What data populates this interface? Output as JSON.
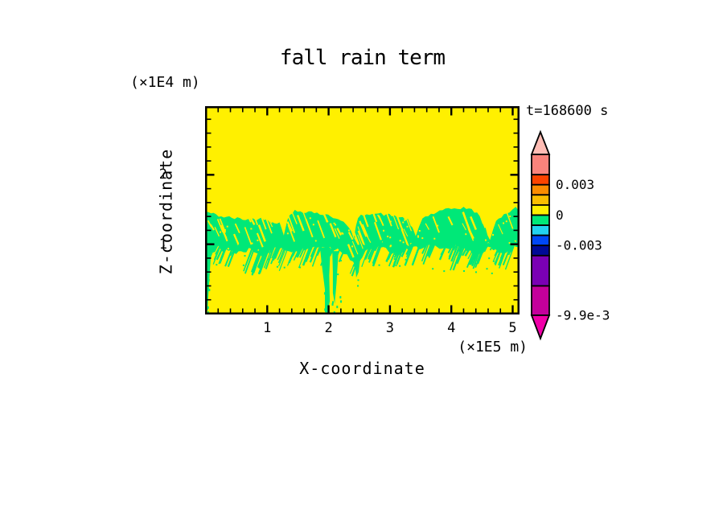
{
  "title": "fall rain term",
  "time_label": "t=168600 s",
  "axes": {
    "x_label": "X-coordinate",
    "x_unit": "(×1E5 m)",
    "y_label": "Z-coordinate",
    "y_unit": "(×1E4 m)"
  },
  "colors": {
    "page_background": "#ffffff",
    "frame": "#000000",
    "text": "#000000",
    "field_background": "#FFF000",
    "field_band": "#00E878"
  },
  "chart_data": {
    "type": "heatmap",
    "title": "fall rain term",
    "time_label": "t=168600 s",
    "xlabel": "X-coordinate",
    "x_unit": "(×1E5 m)",
    "ylabel": "Z-coordinate",
    "y_unit": "(×1E4 m)",
    "xlim": [
      0,
      5.12
    ],
    "ylim": [
      0,
      3.0
    ],
    "x_major_ticks": [
      1,
      2,
      3,
      4,
      5
    ],
    "x_minor_tick_step": 0.2,
    "y_major_ticks": [
      1,
      2
    ],
    "y_minor_tick_step": 0.2,
    "grid": false,
    "field": {
      "background_cell": {
        "range": [
          0,
          0.001
        ],
        "color": "#FFF000",
        "note": "near-zero values over most of the domain"
      },
      "band_cell": {
        "range": [
          -0.001,
          0
        ],
        "color": "#00E878",
        "note": "ragged precipitation band around z = 0.8-1.5 (x1E4 m)"
      },
      "band_top_edge": [
        [
          0,
          1.47
        ],
        [
          0.25,
          1.4
        ],
        [
          0.6,
          1.36
        ],
        [
          0.95,
          1.37
        ],
        [
          1.2,
          1.3
        ],
        [
          1.27,
          1.15
        ],
        [
          1.33,
          1.37
        ],
        [
          1.45,
          1.48
        ],
        [
          1.72,
          1.47
        ],
        [
          1.95,
          1.42
        ],
        [
          2.2,
          1.36
        ],
        [
          2.33,
          1.23
        ],
        [
          2.41,
          1.1
        ],
        [
          2.48,
          1.38
        ],
        [
          2.62,
          1.45
        ],
        [
          2.9,
          1.43
        ],
        [
          3.12,
          1.4
        ],
        [
          3.3,
          1.35
        ],
        [
          3.42,
          1.12
        ],
        [
          3.53,
          1.38
        ],
        [
          3.76,
          1.46
        ],
        [
          4.0,
          1.51
        ],
        [
          4.2,
          1.53
        ],
        [
          4.42,
          1.46
        ],
        [
          4.55,
          1.24
        ],
        [
          4.63,
          1.05
        ],
        [
          4.73,
          1.35
        ],
        [
          4.9,
          1.45
        ],
        [
          5.05,
          1.52
        ],
        [
          5.12,
          1.49
        ]
      ],
      "band_bottom_edge": [
        [
          0,
          0.82
        ],
        [
          0.2,
          0.95
        ],
        [
          0.45,
          0.87
        ],
        [
          0.7,
          0.93
        ],
        [
          0.95,
          0.85
        ],
        [
          1.15,
          0.97
        ],
        [
          1.4,
          0.89
        ],
        [
          1.65,
          0.93
        ],
        [
          1.85,
          0.98
        ],
        [
          2.1,
          0.94
        ],
        [
          2.3,
          0.87
        ],
        [
          2.45,
          0.68
        ],
        [
          2.6,
          0.89
        ],
        [
          2.85,
          0.95
        ],
        [
          3.1,
          0.85
        ],
        [
          3.35,
          0.93
        ],
        [
          3.6,
          0.99
        ],
        [
          3.85,
          0.91
        ],
        [
          4.1,
          0.97
        ],
        [
          4.35,
          0.87
        ],
        [
          4.6,
          0.93
        ],
        [
          4.85,
          0.89
        ],
        [
          5.0,
          0.97
        ],
        [
          5.12,
          0.93
        ]
      ],
      "streaks": [
        {
          "points": [
            [
              1.86,
              0.95
            ],
            [
              2.03,
              0.95
            ],
            [
              2.01,
              0.55
            ],
            [
              2.02,
              0.18
            ],
            [
              1.98,
              0.02
            ],
            [
              1.94,
              0.02
            ],
            [
              1.94,
              0.35
            ],
            [
              1.89,
              0.7
            ]
          ]
        },
        {
          "points": [
            [
              2.06,
              0.9
            ],
            [
              2.16,
              0.9
            ],
            [
              2.13,
              0.45
            ],
            [
              2.1,
              0.14
            ],
            [
              2.07,
              0.3
            ],
            [
              2.07,
              0.6
            ]
          ]
        },
        {
          "points": [
            [
              0.0,
              1.0
            ],
            [
              0.09,
              0.95
            ],
            [
              0.06,
              0.55
            ],
            [
              0.03,
              0.1
            ],
            [
              0.0,
              0.05
            ]
          ]
        },
        {
          "points": [
            [
              2.42,
              0.85
            ],
            [
              2.52,
              0.83
            ],
            [
              2.49,
              0.6
            ],
            [
              2.45,
              0.52
            ]
          ]
        }
      ]
    },
    "colorbar": {
      "max_value": 0.006,
      "min_value": -0.0099,
      "overflow_top_color": "#FFBCB4",
      "overflow_bottom_color": "#F000A8",
      "cells": [
        {
          "color": "#F9837B",
          "from": 0.004,
          "to": 0.006
        },
        {
          "color": "#FB4400",
          "from": 0.003,
          "to": 0.004
        },
        {
          "color": "#FB8C00",
          "from": 0.002,
          "to": 0.003
        },
        {
          "color": "#FBBE00",
          "from": 0.001,
          "to": 0.002
        },
        {
          "color": "#FFF000",
          "from": 0.0,
          "to": 0.001
        },
        {
          "color": "#00E878",
          "from": -0.001,
          "to": 0.0
        },
        {
          "color": "#22D2F0",
          "from": -0.002,
          "to": -0.001
        },
        {
          "color": "#0048F5",
          "from": -0.003,
          "to": -0.002
        },
        {
          "color": "#000A96",
          "from": -0.004,
          "to": -0.003
        },
        {
          "color": "#7A00B4",
          "from": -0.007,
          "to": -0.004
        },
        {
          "color": "#C4009B",
          "from": -0.0099,
          "to": -0.007
        }
      ],
      "labels": [
        {
          "text": "0.003",
          "value": 0.003
        },
        {
          "text": "0",
          "value": 0
        },
        {
          "text": "-0.003",
          "value": -0.003
        },
        {
          "text": "-9.9e-3",
          "value": -0.0099
        }
      ]
    }
  }
}
